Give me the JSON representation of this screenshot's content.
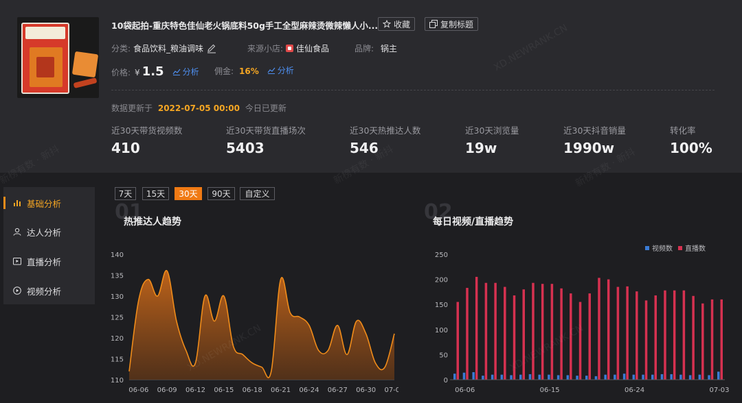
{
  "product": {
    "title": "10袋起拍-重庆特色佳仙老火锅底料50g手工全型麻辣烫微辣懒人小...",
    "collect_label": "收藏",
    "copy_title_label": "复制标题",
    "category_label": "分类:",
    "category_value": "食品饮料_粮油调味",
    "shop_label": "来源小店:",
    "shop_value": "佳仙食品",
    "brand_label": "品牌:",
    "brand_value": "锅主",
    "price_label": "价格:",
    "price_currency": "¥",
    "price_value": "1.5",
    "analyze_label": "分析",
    "commission_label": "佣金:",
    "commission_value": "16%",
    "image_pkg_text": "重庆老火锅"
  },
  "update": {
    "prefix": "数据更新于",
    "date": "2022-07-05 00:00",
    "suffix": "今日已更新"
  },
  "stats": [
    {
      "label": "近30天带货视频数",
      "value": "410"
    },
    {
      "label": "近30天带货直播场次",
      "value": "5403"
    },
    {
      "label": "近30天热推达人数",
      "value": "546"
    },
    {
      "label": "近30天浏览量",
      "value": "19w"
    },
    {
      "label": "近30天抖音销量",
      "value": "1990w"
    },
    {
      "label": "转化率",
      "value": "100%"
    }
  ],
  "sidebar": {
    "items": [
      {
        "label": "基础分析",
        "icon": "bar-chart-icon",
        "active": true
      },
      {
        "label": "达人分析",
        "icon": "user-icon",
        "active": false
      },
      {
        "label": "直播分析",
        "icon": "live-icon",
        "active": false
      },
      {
        "label": "视频分析",
        "icon": "play-icon",
        "active": false
      }
    ]
  },
  "ranges": [
    {
      "label": "7天",
      "active": false
    },
    {
      "label": "15天",
      "active": false
    },
    {
      "label": "30天",
      "active": true
    },
    {
      "label": "90天",
      "active": false
    },
    {
      "label": "自定义",
      "active": false
    }
  ],
  "watermarks": [
    "XD.NEWRANK.CN",
    "新榜有数 · 新抖",
    "新榜有数 · 新抖",
    "新榜有数 · 新抖",
    "XD.NEWRANK.CN",
    "XD.NEWRANK.CN"
  ],
  "colors": {
    "accent": "#f07a14",
    "line": "#f08c1a",
    "video_bar": "#3a7bd5",
    "live_bar": "#d63150",
    "link": "#4e8ff0"
  },
  "chart1_header": {
    "index": "01",
    "title": "热推达人趋势"
  },
  "chart2_header": {
    "index": "02",
    "title": "每日视频/直播趋势"
  },
  "chart_data": [
    {
      "type": "area",
      "title": "热推达人趋势",
      "x": [
        "06-05",
        "06-06",
        "06-07",
        "06-08",
        "06-09",
        "06-10",
        "06-11",
        "06-12",
        "06-13",
        "06-14",
        "06-15",
        "06-16",
        "06-17",
        "06-18",
        "06-19",
        "06-20",
        "06-21",
        "06-22",
        "06-23",
        "06-24",
        "06-25",
        "06-26",
        "06-27",
        "06-28",
        "06-29",
        "06-30",
        "07-01",
        "07-02",
        "07-03"
      ],
      "xticks": [
        "06-06",
        "06-09",
        "06-12",
        "06-15",
        "06-18",
        "06-21",
        "06-24",
        "06-27",
        "06-30",
        "07-03"
      ],
      "values": [
        112,
        129,
        134,
        130,
        136,
        124,
        117,
        114,
        130,
        124,
        130,
        118,
        116,
        114,
        113,
        112,
        134,
        126,
        125,
        123,
        117,
        117,
        123,
        116,
        124,
        121,
        114,
        113,
        121
      ],
      "ylim": [
        110,
        140
      ],
      "yticks": [
        110,
        115,
        120,
        125,
        130,
        135,
        140
      ],
      "grid": false
    },
    {
      "type": "bar",
      "title": "每日视频/直播趋势",
      "x": [
        "06-05",
        "06-06",
        "06-07",
        "06-08",
        "06-09",
        "06-10",
        "06-11",
        "06-12",
        "06-13",
        "06-14",
        "06-15",
        "06-16",
        "06-17",
        "06-18",
        "06-19",
        "06-20",
        "06-21",
        "06-22",
        "06-23",
        "06-24",
        "06-25",
        "06-26",
        "06-27",
        "06-28",
        "06-29",
        "06-30",
        "07-01",
        "07-02",
        "07-03"
      ],
      "xticks": [
        "06-06",
        "06-15",
        "06-24",
        "07-03"
      ],
      "series": [
        {
          "name": "视频数",
          "values": [
            12,
            14,
            15,
            8,
            10,
            10,
            9,
            10,
            11,
            10,
            10,
            9,
            9,
            8,
            8,
            7,
            10,
            10,
            12,
            10,
            10,
            10,
            11,
            11,
            10,
            9,
            10,
            9,
            16
          ]
        },
        {
          "name": "直播数",
          "values": [
            155,
            183,
            205,
            193,
            193,
            185,
            168,
            180,
            193,
            191,
            191,
            182,
            172,
            155,
            172,
            203,
            200,
            185,
            186,
            176,
            158,
            168,
            178,
            178,
            178,
            167,
            152,
            160,
            160
          ]
        }
      ],
      "ylim": [
        0,
        250
      ],
      "yticks": [
        0,
        50,
        100,
        150,
        200,
        250
      ],
      "legend": "top-right",
      "grid": false
    }
  ]
}
